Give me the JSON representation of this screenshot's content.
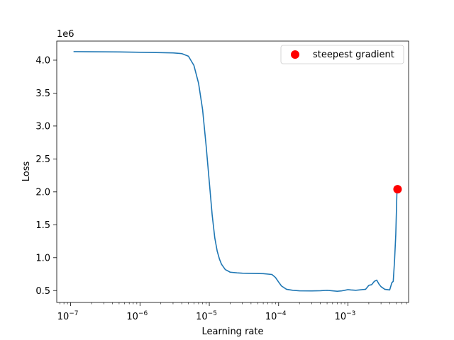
{
  "chart_data": {
    "type": "line",
    "xscale": "log",
    "xlabel": "Learning rate",
    "ylabel": "Loss",
    "y_offset_label": "1e6",
    "xlim": [
      6.3e-08,
      0.0075
    ],
    "ylim": [
      320000,
      4290000
    ],
    "x_ticks": [
      1e-07,
      1e-06,
      1e-05,
      0.0001,
      0.001
    ],
    "x_tick_labels": [
      {
        "base": "10",
        "exp": "−7"
      },
      {
        "base": "10",
        "exp": "−6"
      },
      {
        "base": "10",
        "exp": "−5"
      },
      {
        "base": "10",
        "exp": "−4"
      },
      {
        "base": "10",
        "exp": "−3"
      }
    ],
    "y_ticks": [
      500000,
      1000000,
      1500000,
      2000000,
      2500000,
      3000000,
      3500000,
      4000000
    ],
    "y_tick_labels": [
      "0.5",
      "1.0",
      "1.5",
      "2.0",
      "2.5",
      "3.0",
      "3.5",
      "4.0"
    ],
    "grid": false,
    "legend": {
      "position": "top-right",
      "entries": [
        "steepest gradient"
      ]
    },
    "series": [
      {
        "color": "#1f77b4",
        "x": [
          1.1e-07,
          5e-07,
          1e-06,
          2e-06,
          3e-06,
          4e-06,
          5e-06,
          6e-06,
          7e-06,
          8e-06,
          9e-06,
          1e-05,
          1.1e-05,
          1.2e-05,
          1.3e-05,
          1.4e-05,
          1.5e-05,
          1.7e-05,
          2e-05,
          2.5e-05,
          3e-05,
          4e-05,
          6e-05,
          8e-05,
          9e-05,
          0.0001,
          0.00011,
          0.00013,
          0.00016,
          0.0002,
          0.0003,
          0.0004,
          0.0005,
          0.0006,
          0.0007,
          0.0008,
          0.0009,
          0.001,
          0.0011,
          0.0013,
          0.0016,
          0.0018,
          0.002,
          0.0022,
          0.0024,
          0.0026,
          0.0028,
          0.003,
          0.0034,
          0.004,
          0.0043,
          0.0045,
          0.0047,
          0.0049,
          0.0051
        ],
        "y": [
          4130000,
          4125000,
          4120000,
          4115000,
          4110000,
          4100000,
          4060000,
          3920000,
          3650000,
          3250000,
          2700000,
          2150000,
          1650000,
          1300000,
          1100000,
          980000,
          900000,
          820000,
          780000,
          770000,
          765000,
          762000,
          758000,
          745000,
          700000,
          630000,
          570000,
          520000,
          505000,
          497000,
          495000,
          498000,
          505000,
          497000,
          490000,
          495000,
          505000,
          515000,
          510000,
          505000,
          515000,
          520000,
          580000,
          590000,
          640000,
          660000,
          600000,
          560000,
          520000,
          510000,
          620000,
          640000,
          950000,
          1350000,
          2030000
        ]
      }
    ],
    "highlight_point": {
      "x": 0.0052,
      "y": 2040000,
      "color": "#ff0000"
    }
  }
}
